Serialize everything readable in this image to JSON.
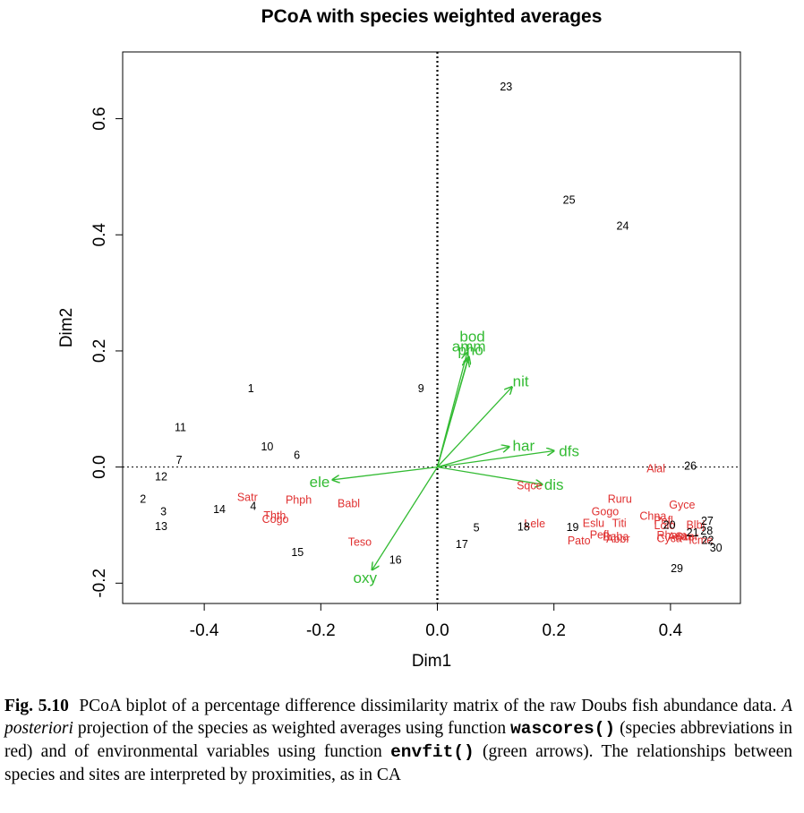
{
  "chart_data": {
    "type": "scatter",
    "title": "PCoA with species weighted averages",
    "xlabel": "Dim1",
    "ylabel": "Dim2",
    "xlim": [
      -0.54,
      0.52
    ],
    "ylim": [
      -0.235,
      0.715
    ],
    "xticks": [
      -0.4,
      -0.2,
      0.0,
      0.2,
      0.4
    ],
    "xtick_labels": [
      "-0.4",
      "-0.2",
      "0.0",
      "0.2",
      "0.4"
    ],
    "yticks": [
      -0.2,
      0.0,
      0.2,
      0.4,
      0.6
    ],
    "ytick_labels": [
      "-0.2",
      "0.0",
      "0.2",
      "0.4",
      "0.6"
    ],
    "reference_lines": {
      "x": 0,
      "y": 0
    },
    "colors": {
      "sites": "#000000",
      "species": "#e03030",
      "env": "#33bb33"
    },
    "sites": [
      {
        "label": "1",
        "x": -0.32,
        "y": 0.135
      },
      {
        "label": "2",
        "x": -0.505,
        "y": -0.055
      },
      {
        "label": "3",
        "x": -0.47,
        "y": -0.077
      },
      {
        "label": "4",
        "x": -0.316,
        "y": -0.068
      },
      {
        "label": "5",
        "x": 0.067,
        "y": -0.105
      },
      {
        "label": "6",
        "x": -0.241,
        "y": 0.02
      },
      {
        "label": "7",
        "x": -0.443,
        "y": 0.012
      },
      {
        "label": "9",
        "x": -0.028,
        "y": 0.135
      },
      {
        "label": "10",
        "x": -0.292,
        "y": 0.035
      },
      {
        "label": "11",
        "x": -0.441,
        "y": 0.068
      },
      {
        "label": "12",
        "x": -0.474,
        "y": -0.017
      },
      {
        "label": "13",
        "x": -0.474,
        "y": -0.102
      },
      {
        "label": "14",
        "x": -0.374,
        "y": -0.073
      },
      {
        "label": "15",
        "x": -0.24,
        "y": -0.147
      },
      {
        "label": "16",
        "x": -0.072,
        "y": -0.16
      },
      {
        "label": "17",
        "x": 0.042,
        "y": -0.133
      },
      {
        "label": "18",
        "x": 0.148,
        "y": -0.103
      },
      {
        "label": "19",
        "x": 0.232,
        "y": -0.104
      },
      {
        "label": "20",
        "x": 0.398,
        "y": -0.1
      },
      {
        "label": "21",
        "x": 0.438,
        "y": -0.113
      },
      {
        "label": "22",
        "x": 0.464,
        "y": -0.126
      },
      {
        "label": "23",
        "x": 0.118,
        "y": 0.655
      },
      {
        "label": "24",
        "x": 0.318,
        "y": 0.415
      },
      {
        "label": "25",
        "x": 0.226,
        "y": 0.46
      },
      {
        "label": "26",
        "x": 0.434,
        "y": 0.002
      },
      {
        "label": "27",
        "x": 0.463,
        "y": -0.093
      },
      {
        "label": "28",
        "x": 0.462,
        "y": -0.11
      },
      {
        "label": "29",
        "x": 0.411,
        "y": -0.175
      },
      {
        "label": "30",
        "x": 0.478,
        "y": -0.139
      }
    ],
    "species": [
      {
        "label": "Satr",
        "x": -0.326,
        "y": -0.052
      },
      {
        "label": "Phph",
        "x": -0.238,
        "y": -0.057
      },
      {
        "label": "Babl",
        "x": -0.152,
        "y": -0.063
      },
      {
        "label": "Thth",
        "x": -0.279,
        "y": -0.084
      },
      {
        "label": "Cogo",
        "x": -0.278,
        "y": -0.09
      },
      {
        "label": "Teso",
        "x": -0.133,
        "y": -0.129
      },
      {
        "label": "Alal",
        "x": 0.375,
        "y": -0.003
      },
      {
        "label": "Sqce",
        "x": 0.158,
        "y": -0.032
      },
      {
        "label": "Lele",
        "x": 0.167,
        "y": -0.098
      },
      {
        "label": "Ruru",
        "x": 0.313,
        "y": -0.055
      },
      {
        "label": "Gyce",
        "x": 0.42,
        "y": -0.065
      },
      {
        "label": "Gogo",
        "x": 0.288,
        "y": -0.077
      },
      {
        "label": "Chna",
        "x": 0.37,
        "y": -0.085
      },
      {
        "label": "Pefl",
        "x": 0.388,
        "y": -0.092
      },
      {
        "label": "Eslu",
        "x": 0.268,
        "y": -0.097
      },
      {
        "label": "Titi",
        "x": 0.312,
        "y": -0.097
      },
      {
        "label": "Lolo",
        "x": 0.39,
        "y": -0.101
      },
      {
        "label": "Blbj",
        "x": 0.443,
        "y": -0.1
      },
      {
        "label": "Pefl",
        "x": 0.278,
        "y": -0.117
      },
      {
        "label": "Baba",
        "x": 0.306,
        "y": -0.12
      },
      {
        "label": "Abbr",
        "x": 0.31,
        "y": -0.124
      },
      {
        "label": "Pato",
        "x": 0.243,
        "y": -0.127
      },
      {
        "label": "Rham",
        "x": 0.402,
        "y": -0.118
      },
      {
        "label": "Anan",
        "x": 0.418,
        "y": -0.12
      },
      {
        "label": "Cyca",
        "x": 0.398,
        "y": -0.123
      },
      {
        "label": "Scer",
        "x": 0.428,
        "y": -0.12
      },
      {
        "label": "Icme",
        "x": 0.452,
        "y": -0.126
      }
    ],
    "env_vectors": [
      {
        "label": "bod",
        "x": 0.051,
        "y": 0.197,
        "lx": 0.06,
        "ly": 0.225
      },
      {
        "label": "amm",
        "x": 0.054,
        "y": 0.19,
        "lx": 0.054,
        "ly": 0.208
      },
      {
        "label": "pho",
        "x": 0.052,
        "y": 0.185,
        "lx": 0.057,
        "ly": 0.202
      },
      {
        "label": "nit",
        "x": 0.128,
        "y": 0.138,
        "lx": 0.143,
        "ly": 0.148
      },
      {
        "label": "har",
        "x": 0.123,
        "y": 0.035,
        "lx": 0.148,
        "ly": 0.037
      },
      {
        "label": "dfs",
        "x": 0.2,
        "y": 0.028,
        "lx": 0.226,
        "ly": 0.028
      },
      {
        "label": "dis",
        "x": 0.18,
        "y": -0.03,
        "lx": 0.2,
        "ly": -0.03
      },
      {
        "label": "ele",
        "x": -0.18,
        "y": -0.022,
        "lx": -0.202,
        "ly": -0.025
      },
      {
        "label": "oxy",
        "x": -0.112,
        "y": -0.177,
        "lx": -0.124,
        "ly": -0.19
      }
    ]
  },
  "caption": {
    "fig_label": "Fig. 5.10",
    "text_1": "PCoA biplot of a percentage difference dissimilarity matrix of the raw Doubs fish abundance data.",
    "italic": "A posteriori",
    "text_2": "projection of the species as weighted averages using function",
    "code_1": "wascores()",
    "text_3": "(species abbreviations in red) and of environmental variables using function",
    "code_2": "envfit()",
    "text_4": "(green arrows). The relationships between species and sites are interpreted by proximities, as in CA"
  }
}
